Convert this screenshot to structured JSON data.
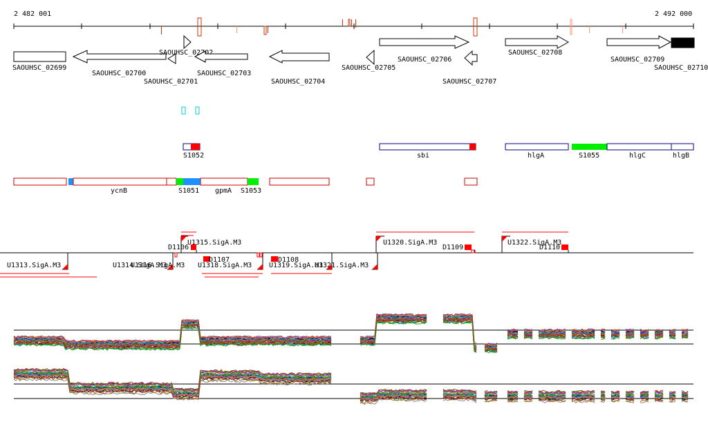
{
  "ruler": {
    "start_label": "2 482 001",
    "end_label": "2 492 000"
  },
  "genes": [
    {
      "id": "g0",
      "label": "SAOUHSC_02699"
    },
    {
      "id": "g1",
      "label": "SAOUHSC_02700"
    },
    {
      "id": "g2",
      "label": "SAOUHSC_02701"
    },
    {
      "id": "g3",
      "label": "SAOUHSC_02702"
    },
    {
      "id": "g4",
      "label": "SAOUHSC_02703"
    },
    {
      "id": "g5",
      "label": "SAOUHSC_02704"
    },
    {
      "id": "g6",
      "label": "SAOUHSC_02705"
    },
    {
      "id": "g7",
      "label": "SAOUHSC_02706"
    },
    {
      "id": "g8",
      "label": "SAOUHSC_02707"
    },
    {
      "id": "g9",
      "label": "SAOUHSC_02708"
    },
    {
      "id": "g10",
      "label": "SAOUHSC_02709"
    },
    {
      "id": "g11",
      "label": "SAOUHSC_02710"
    }
  ],
  "segments_row1": [
    {
      "label": "S1052"
    },
    {
      "label": "sbi"
    },
    {
      "label": "hlgA"
    },
    {
      "label": "S1055"
    },
    {
      "label": "hlgC"
    },
    {
      "label": "hlgB"
    }
  ],
  "segments_row2": [
    {
      "label": "ycnB"
    },
    {
      "label": "S1051"
    },
    {
      "label": "gpmA"
    },
    {
      "label": "S1053"
    }
  ],
  "promoters": [
    {
      "label": "U1313.SigA.M3"
    },
    {
      "label": "U1314.SigA.M3"
    },
    {
      "label": "U1315.SigA.M3"
    },
    {
      "label": "U1316.SigA.M3"
    },
    {
      "label": "U1318.SigA.M3"
    },
    {
      "label": "U1319.SigA.M3"
    },
    {
      "label": "U1321.SigA.M3"
    },
    {
      "label": "U1320.SigA.M3"
    },
    {
      "label": "U1322.SigA.M3"
    }
  ],
  "terminators": [
    {
      "label": "D1106"
    },
    {
      "label": "D1107"
    },
    {
      "label": "D1108"
    },
    {
      "label": "D1109"
    },
    {
      "label": "D1110"
    }
  ],
  "colors": {
    "red": "#ff0000",
    "green": "#00ee00",
    "blue": "#1e90ff",
    "gene_fill": "#000000",
    "cyan": "#00cccc"
  }
}
